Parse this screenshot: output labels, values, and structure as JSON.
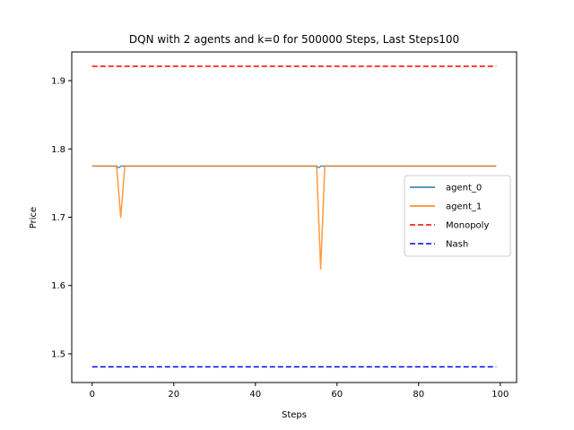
{
  "chart_data": {
    "type": "line",
    "title": "DQN with 2 agents and k=0 for 500000 Steps, Last Steps100",
    "xlabel": "Steps",
    "ylabel": "Price",
    "xlim": [
      -5,
      104
    ],
    "ylim": [
      1.458,
      1.942
    ],
    "xticks": [
      0,
      20,
      40,
      60,
      80,
      100
    ],
    "xtick_labels": [
      "0",
      "20",
      "40",
      "60",
      "80",
      "100"
    ],
    "yticks": [
      1.5,
      1.6,
      1.7,
      1.8,
      1.9
    ],
    "ytick_labels": [
      "1.5",
      "1.6",
      "1.7",
      "1.8",
      "1.9"
    ],
    "grid": false,
    "legend_position": "center-right",
    "series": [
      {
        "name": "agent_0",
        "style": "solid",
        "color": "#1f77b4",
        "points": [
          [
            0,
            1.775
          ],
          [
            6,
            1.775
          ],
          [
            6.3,
            1.773
          ],
          [
            6.7,
            1.773
          ],
          [
            7,
            1.775
          ],
          [
            55,
            1.775
          ],
          [
            55.3,
            1.773
          ],
          [
            55.7,
            1.773
          ],
          [
            56,
            1.775
          ],
          [
            99,
            1.775
          ]
        ]
      },
      {
        "name": "agent_1",
        "style": "solid",
        "color": "#ff7f0e",
        "points": [
          [
            0,
            1.775
          ],
          [
            6,
            1.775
          ],
          [
            7,
            1.7
          ],
          [
            8,
            1.775
          ],
          [
            55,
            1.775
          ],
          [
            56,
            1.624
          ],
          [
            57,
            1.775
          ],
          [
            99,
            1.775
          ]
        ]
      },
      {
        "name": "Monopoly",
        "style": "dashed",
        "color": "#ff0000",
        "points": [
          [
            0,
            1.921
          ],
          [
            99,
            1.921
          ]
        ]
      },
      {
        "name": "Nash",
        "style": "dashed",
        "color": "#0000ff",
        "points": [
          [
            0,
            1.481
          ],
          [
            99,
            1.481
          ]
        ]
      }
    ]
  }
}
